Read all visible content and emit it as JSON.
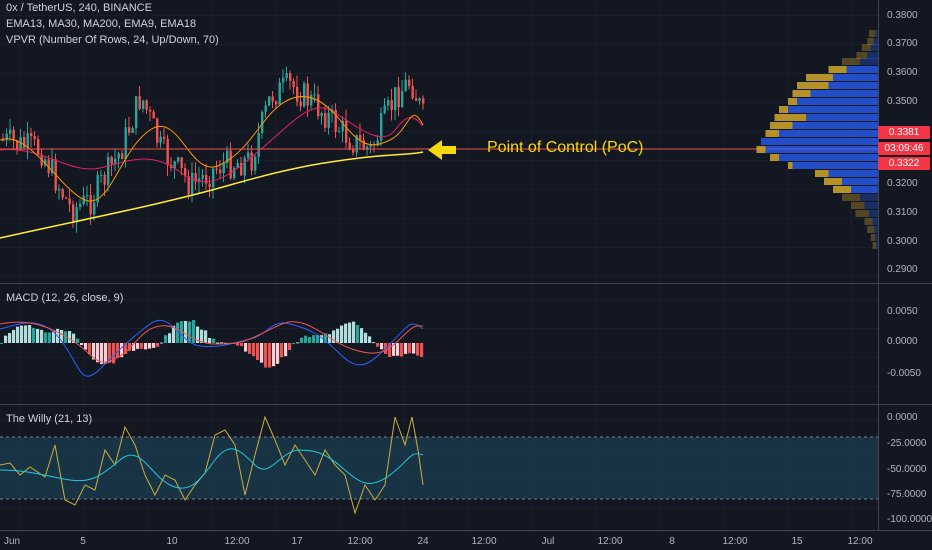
{
  "header": {
    "line1": "0x / TetherUS, 240, BINANCE",
    "line2": "EMA13, MA30, MA200, EMA9, EMA18",
    "line3": "VPVR (Number Of Rows, 24, Up/Down, 70)"
  },
  "annotation": {
    "text": "Point of Control (PoC)"
  },
  "price_axis": {
    "ticks": [
      "0.3800",
      "0.3700",
      "0.3600",
      "0.3500",
      "0.3200",
      "0.3100",
      "0.3000",
      "0.2900"
    ],
    "tags": [
      "0.3381",
      "03:09:46",
      "0.3322"
    ]
  },
  "macd": {
    "title": "MACD (12, 26, close, 9)",
    "ticks": [
      "0.0050",
      "0.0000",
      "-0.0050"
    ]
  },
  "willy": {
    "title": "The Willy (21, 13)",
    "ticks": [
      "0.0000",
      "-25.0000",
      "-50.0000",
      "-75.0000",
      "-100.0000"
    ]
  },
  "time_axis": {
    "labels": [
      "Jun",
      "5",
      "10",
      "12:00",
      "17",
      "12:00",
      "24",
      "12:00",
      "Jul",
      "12:00",
      "8",
      "12:00",
      "15",
      "12:00"
    ]
  },
  "colors": {
    "up": "#26a69a",
    "down": "#ef5350",
    "ma200": "#ffeb3b",
    "poc_line": "#ef5350",
    "vpvr_up": "#2962ff",
    "vpvr_down": "#c8a02a"
  }
}
